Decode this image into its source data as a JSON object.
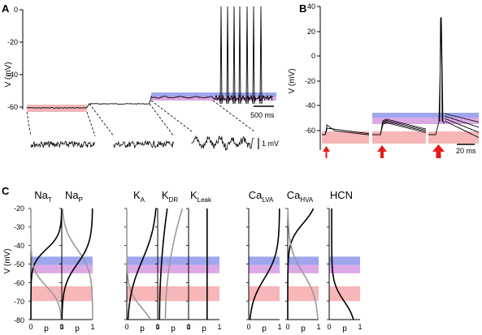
{
  "panels": {
    "A": {
      "label": "A",
      "ylabel": "V (mV)",
      "yticks": [
        "0",
        "-20",
        "-40",
        "-60"
      ],
      "scalebar_time": "500 ms",
      "scalebar_voltage": "1 mV",
      "band_colors": {
        "pink": "#f7b6b8",
        "blue_top": "#9ea6ee",
        "blue_bottom": "#dca8e6"
      }
    },
    "B": {
      "label": "B",
      "ylabel": "V (mV)",
      "yticks": [
        "40",
        "20",
        "0",
        "-20",
        "-40",
        "-60"
      ],
      "scalebar_time": "20 ms",
      "arrow_color": "#e41a1c"
    },
    "C": {
      "label": "C",
      "ylabel": "V (mV)",
      "yticks": [
        "-20",
        "-30",
        "-40",
        "-50",
        "-60",
        "-70",
        "-80"
      ],
      "xlabel": "p",
      "xticks": [
        "0",
        "1"
      ],
      "bands": {
        "blue_mV": [
          -46,
          -55
        ],
        "pink_mV": [
          -62,
          -70
        ]
      },
      "channels": [
        {
          "name": "Na",
          "sub": "T",
          "curves": [
            "sig_dec_black",
            "sig_inc_gray"
          ]
        },
        {
          "name": "Na",
          "sub": "P",
          "curves": [
            "sig_inc_gray",
            "sig_dec_black"
          ]
        },
        {
          "name": "K",
          "sub": "A",
          "curves": [
            "sig_dec_gray",
            "sig_inc_black"
          ]
        },
        {
          "name": "K",
          "sub": "DR",
          "curves": [
            "exp_gray",
            "exp_black"
          ]
        },
        {
          "name": "K",
          "sub": "Leak",
          "curves": [
            "const_black"
          ]
        },
        {
          "name": "Ca",
          "sub": "LVA",
          "curves": [
            "sig_dec_black_lva"
          ]
        },
        {
          "name": "Ca",
          "sub": "HVA",
          "curves": [
            "sig_inc_gray_hva",
            "sig_dec_gray_hva"
          ]
        },
        {
          "name": "HCN",
          "sub": "",
          "curves": [
            "hcn_black"
          ]
        }
      ]
    }
  }
}
